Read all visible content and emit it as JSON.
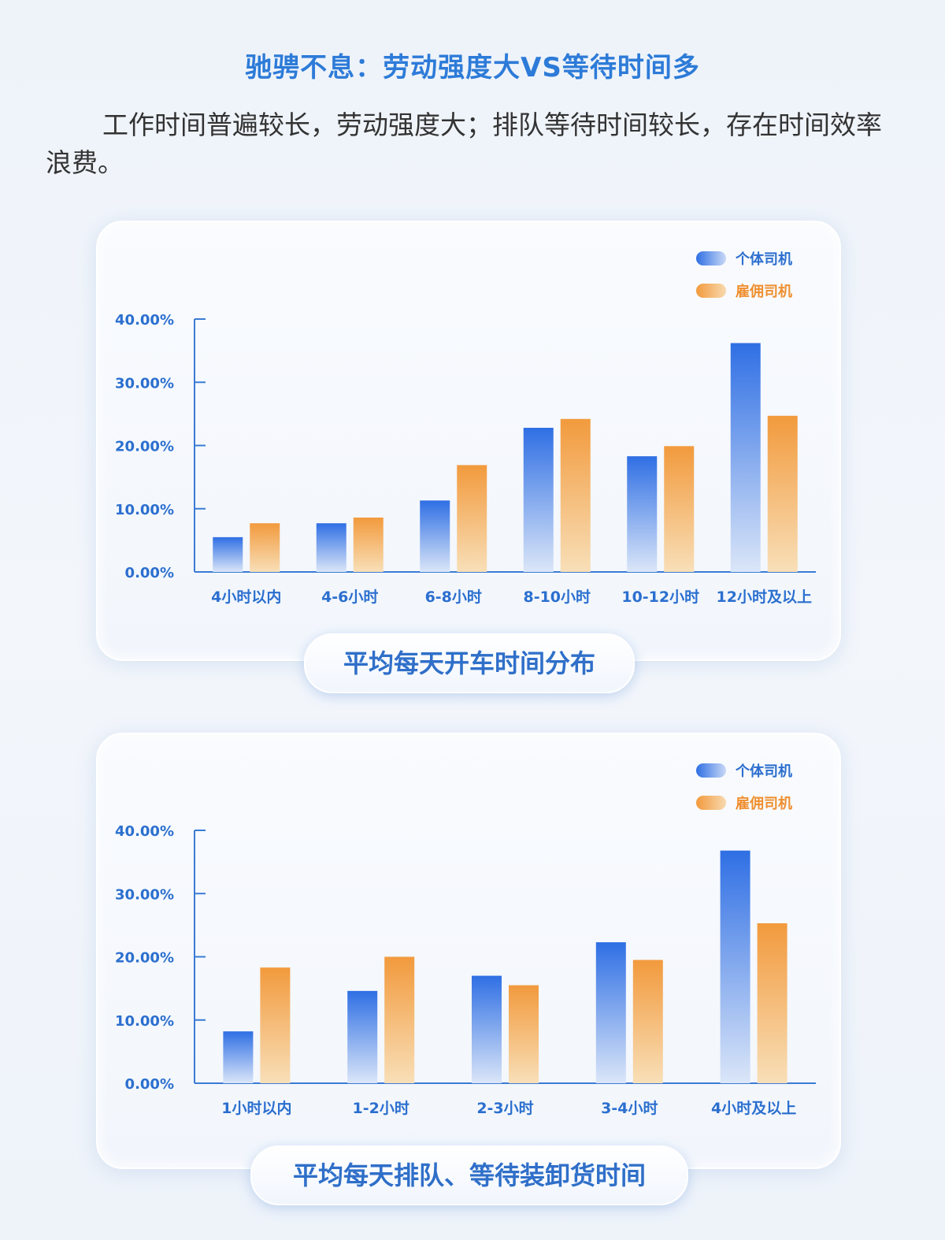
{
  "header": {
    "title": "驰骋不息：劳动强度大VS等待时间多",
    "intro": "工作时间普遍较长，劳动强度大；排队等待时间较长，存在时间效率浪费。"
  },
  "colors": {
    "individual": "#2f6fe4",
    "hired": "#f29a3d",
    "axis": "#3a7bd5"
  },
  "chart_data": [
    {
      "type": "bar",
      "title": "平均每天开车时间分布",
      "categories": [
        "4小时以内",
        "4-6小时",
        "6-8小时",
        "8-10小时",
        "10-12小时",
        "12小时及以上"
      ],
      "series": [
        {
          "name": "个体司机",
          "values": [
            5.5,
            7.7,
            11.3,
            22.8,
            18.3,
            36.2
          ]
        },
        {
          "name": "雇佣司机",
          "values": [
            7.7,
            8.6,
            16.9,
            24.2,
            19.9,
            24.7
          ]
        }
      ],
      "yticks": [
        "0.00%",
        "10.00%",
        "20.00%",
        "30.00%",
        "40.00%"
      ],
      "ylim": [
        0,
        40
      ],
      "legend": "top-right"
    },
    {
      "type": "bar",
      "title": "平均每天排队、等待装卸货时间",
      "categories": [
        "1小时以内",
        "1-2小时",
        "2-3小时",
        "3-4小时",
        "4小时及以上"
      ],
      "series": [
        {
          "name": "个体司机",
          "values": [
            8.2,
            14.6,
            17.0,
            22.3,
            36.8
          ]
        },
        {
          "name": "雇佣司机",
          "values": [
            18.3,
            20.0,
            15.5,
            19.5,
            25.3
          ]
        }
      ],
      "yticks": [
        "0.00%",
        "10.00%",
        "20.00%",
        "30.00%",
        "40.00%"
      ],
      "ylim": [
        0,
        40
      ],
      "legend": "top-right"
    }
  ]
}
